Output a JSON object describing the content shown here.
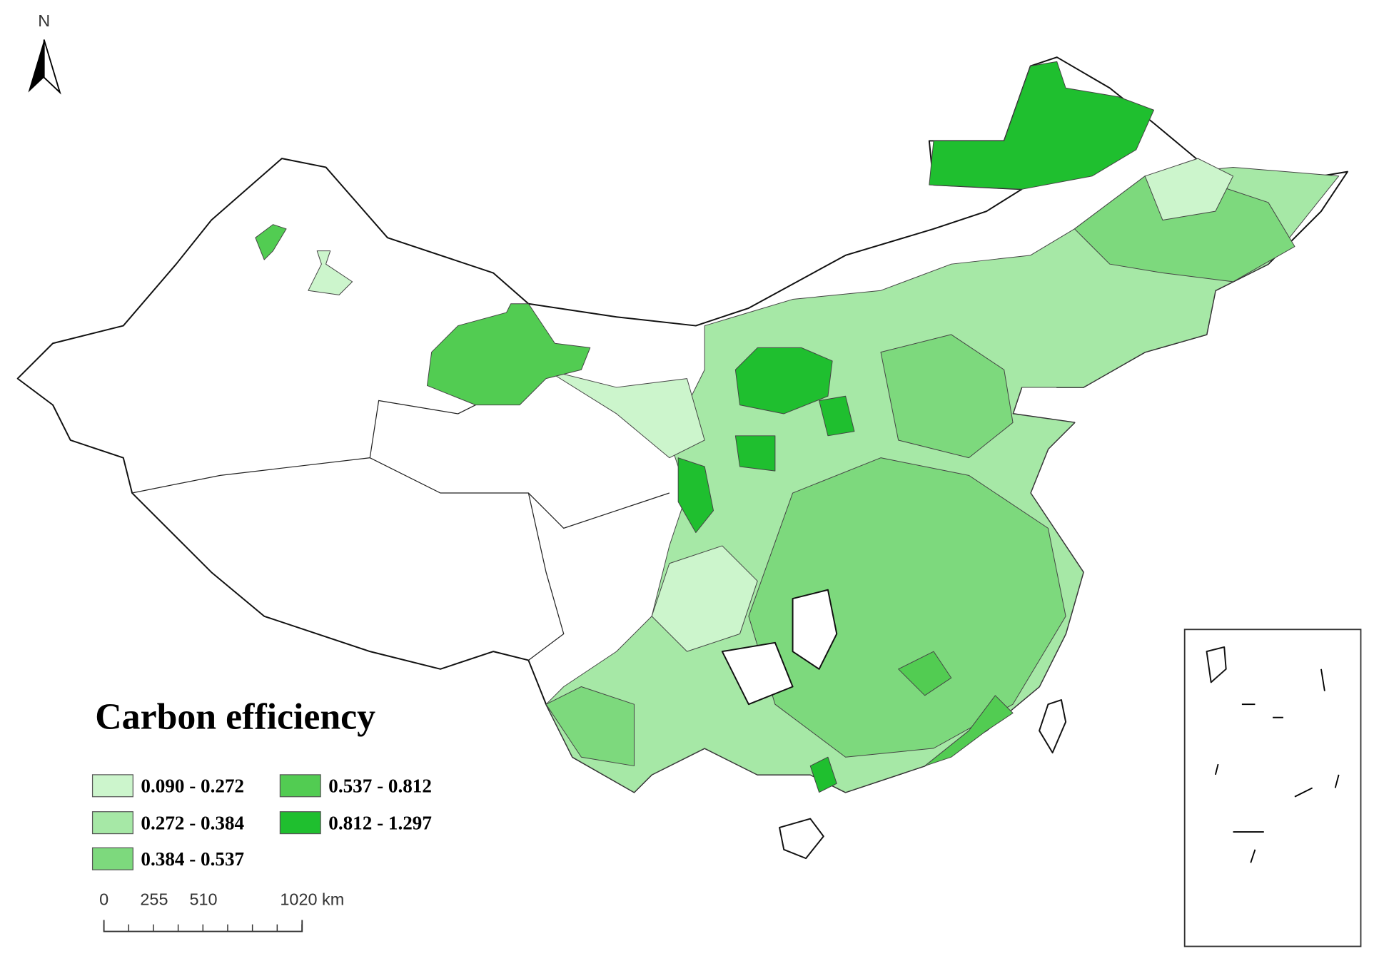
{
  "north": "N",
  "legend": {
    "title": "Carbon efficiency",
    "items": [
      {
        "label": "0.090 - 0.272",
        "color": "#ccf5cc"
      },
      {
        "label": "0.272 - 0.384",
        "color": "#a6e8a6"
      },
      {
        "label": "0.384 - 0.537",
        "color": "#7dd97d"
      },
      {
        "label": "0.537 - 0.812",
        "color": "#52cc52"
      },
      {
        "label": "0.812 - 1.297",
        "color": "#1fbf2f"
      }
    ]
  },
  "scale_bar": {
    "labels": [
      "0",
      "255",
      "510",
      "1020 km"
    ]
  }
}
